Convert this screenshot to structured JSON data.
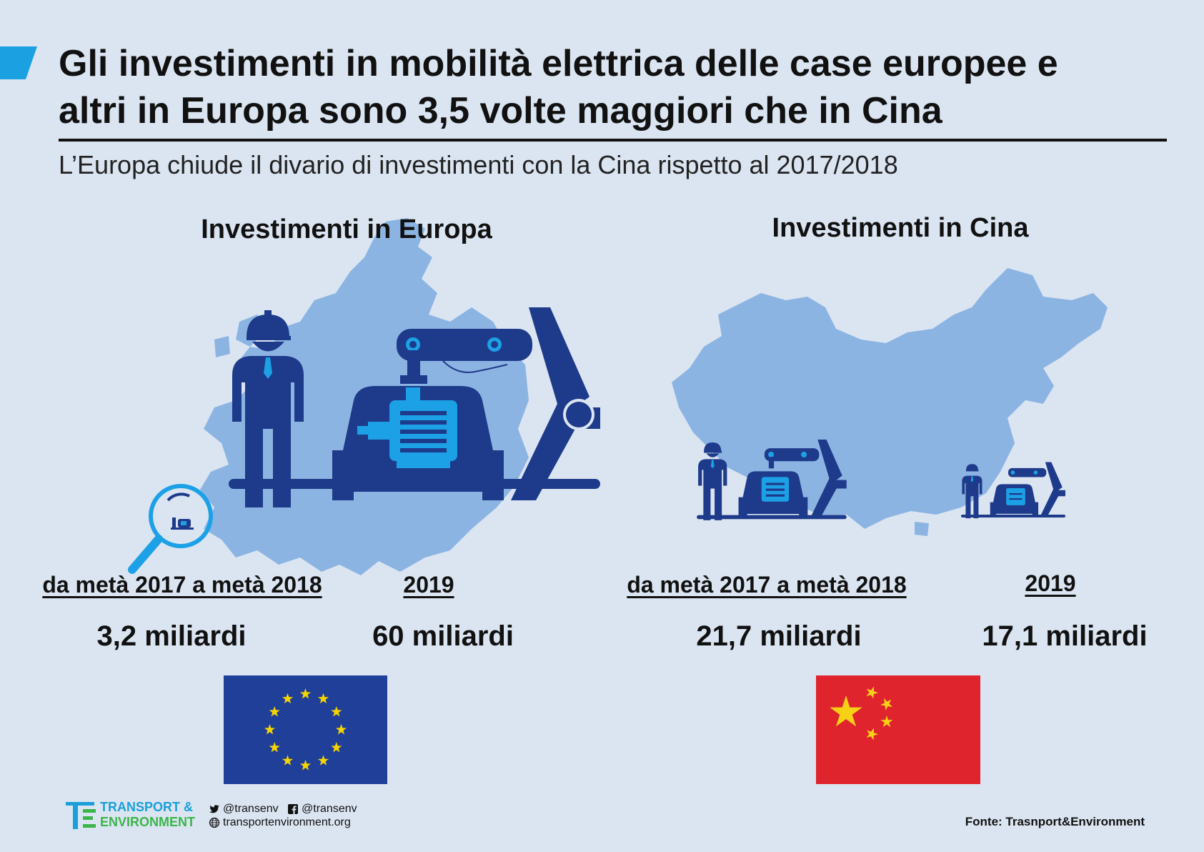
{
  "header": {
    "title_line1": "Gli investimenti in mobilità elettrica delle case europee e",
    "title_line2": "altri in Europa sono 3,5 volte maggiori che in Cina",
    "subtitle": "L’Europa chiude il divario di investimenti con la Cina rispetto al 2017/2018",
    "accent_color": "#1ba1e2"
  },
  "europe": {
    "title": "Investimenti in Europa",
    "period_1": "da metà 2017 a metà 2018",
    "period_2": "2019",
    "amount_1": "3,2 miliardi",
    "amount_2": "60 miliardi",
    "flag_colors": {
      "field": "#1f3f99",
      "stars": "#f5d400"
    }
  },
  "china": {
    "title": "Investimenti in Cina",
    "period_1": "da metà 2017 a metà 2018",
    "period_2": "2019",
    "amount_1": "21,7 miliardi",
    "amount_2": "17,1 miliardi",
    "flag_colors": {
      "field": "#e0242e",
      "stars": "#f7d116"
    }
  },
  "colors": {
    "background": "#dbe5f2",
    "map": "#8cb4e2",
    "factory_dark": "#1e3a8a",
    "factory_light": "#1da1e6"
  },
  "icons": [
    "map-europe-icon",
    "map-china-icon",
    "factory-robot-icon",
    "worker-icon",
    "magnifier-icon",
    "eu-flag-icon",
    "china-flag-icon",
    "twitter-icon",
    "facebook-icon",
    "globe-icon"
  ],
  "footer": {
    "logo_line1": "TRANSPORT &",
    "logo_line2": "ENVIRONMENT",
    "twitter": "@transenv",
    "facebook": "@transenv",
    "website": "transportenvironment.org",
    "source": "Fonte: Trasnport&Environment"
  }
}
